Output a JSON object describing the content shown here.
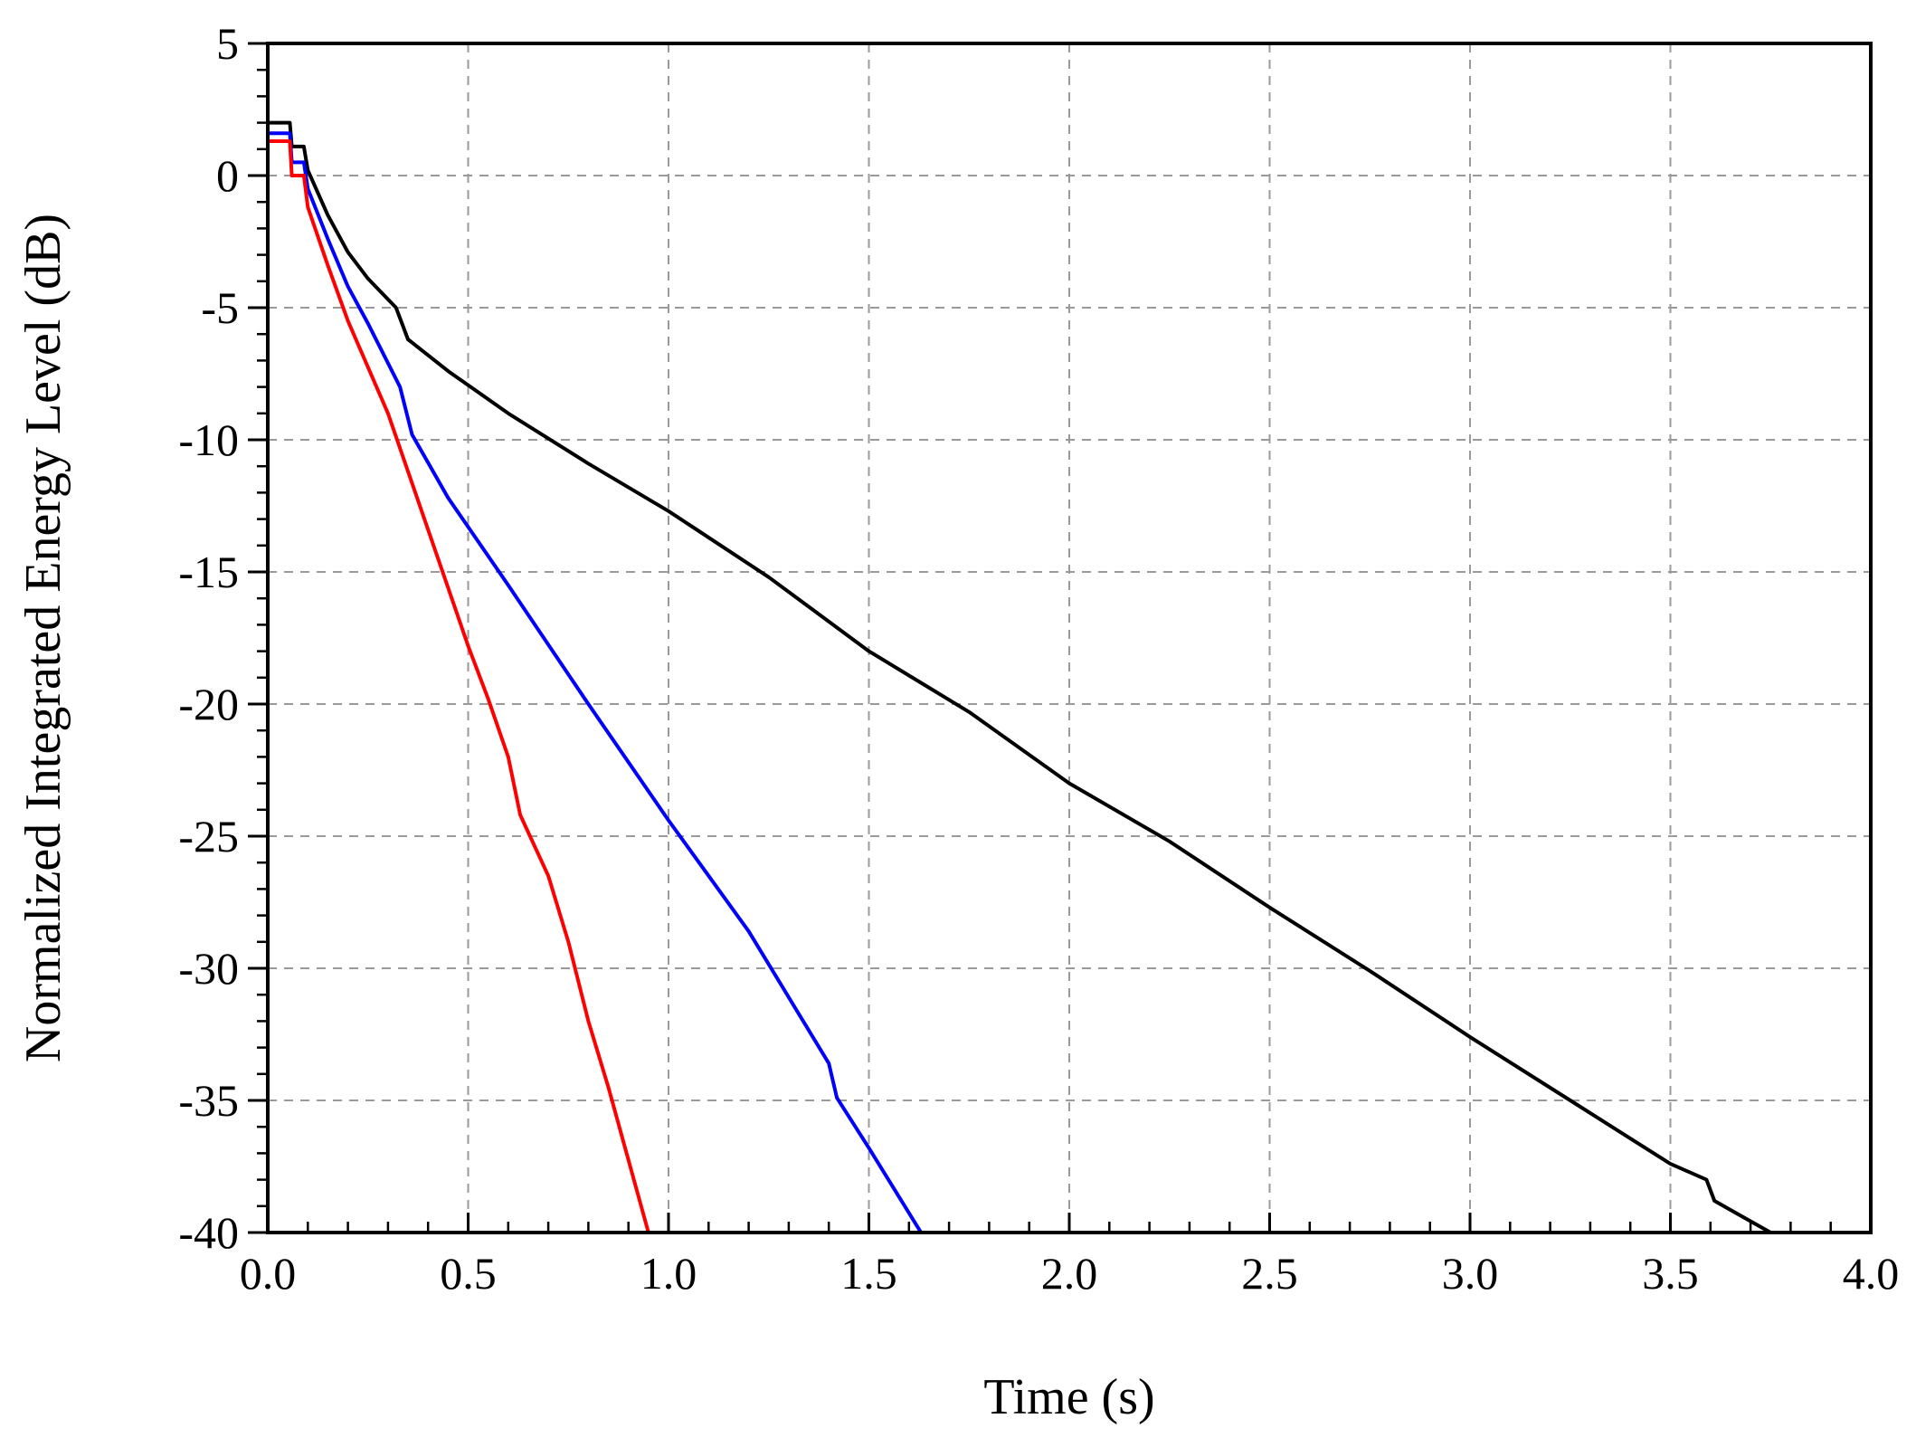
{
  "chart_data": {
    "type": "line",
    "title": "",
    "xlabel": "Time (s)",
    "ylabel": "Normalized Integrated Energy Level (dB)",
    "xlim": [
      0.0,
      4.0
    ],
    "ylim": [
      -40,
      5
    ],
    "x_ticks": [
      "0.0",
      "0.5",
      "1.0",
      "1.5",
      "2.0",
      "2.5",
      "3.0",
      "3.5",
      "4.0"
    ],
    "y_ticks": [
      "5",
      "0",
      "-5",
      "-10",
      "-15",
      "-20",
      "-25",
      "-30",
      "-35",
      "-40"
    ],
    "grid": true,
    "legend": "none",
    "series": [
      {
        "color": "#000000",
        "points": [
          [
            0.0,
            2.0
          ],
          [
            0.055,
            2.0
          ],
          [
            0.06,
            1.1
          ],
          [
            0.09,
            1.1
          ],
          [
            0.1,
            0.2
          ],
          [
            0.15,
            -1.5
          ],
          [
            0.2,
            -2.9
          ],
          [
            0.25,
            -3.9
          ],
          [
            0.32,
            -5.0
          ],
          [
            0.35,
            -6.2
          ],
          [
            0.45,
            -7.4
          ],
          [
            0.6,
            -9.0
          ],
          [
            0.8,
            -10.9
          ],
          [
            1.0,
            -12.7
          ],
          [
            1.25,
            -15.2
          ],
          [
            1.5,
            -18.0
          ],
          [
            1.75,
            -20.3
          ],
          [
            2.0,
            -23.0
          ],
          [
            2.25,
            -25.2
          ],
          [
            2.5,
            -27.7
          ],
          [
            2.75,
            -30.1
          ],
          [
            3.0,
            -32.6
          ],
          [
            3.25,
            -35.0
          ],
          [
            3.5,
            -37.4
          ],
          [
            3.59,
            -38.0
          ],
          [
            3.61,
            -38.8
          ],
          [
            3.75,
            -40.0
          ]
        ]
      },
      {
        "color": "#0000ff",
        "points": [
          [
            0.0,
            1.6
          ],
          [
            0.055,
            1.6
          ],
          [
            0.06,
            0.5
          ],
          [
            0.09,
            0.5
          ],
          [
            0.1,
            -0.5
          ],
          [
            0.15,
            -2.4
          ],
          [
            0.2,
            -4.2
          ],
          [
            0.25,
            -5.6
          ],
          [
            0.33,
            -8.0
          ],
          [
            0.36,
            -9.8
          ],
          [
            0.45,
            -12.2
          ],
          [
            0.6,
            -15.5
          ],
          [
            0.8,
            -20.0
          ],
          [
            1.0,
            -24.4
          ],
          [
            1.2,
            -28.6
          ],
          [
            1.4,
            -33.6
          ],
          [
            1.42,
            -34.9
          ],
          [
            1.5,
            -36.8
          ],
          [
            1.63,
            -40.0
          ]
        ]
      },
      {
        "color": "#ff0000",
        "points": [
          [
            0.0,
            1.3
          ],
          [
            0.055,
            1.3
          ],
          [
            0.06,
            0.0
          ],
          [
            0.09,
            0.0
          ],
          [
            0.1,
            -1.2
          ],
          [
            0.15,
            -3.4
          ],
          [
            0.2,
            -5.5
          ],
          [
            0.3,
            -9.0
          ],
          [
            0.4,
            -13.4
          ],
          [
            0.5,
            -17.8
          ],
          [
            0.55,
            -19.8
          ],
          [
            0.6,
            -22.0
          ],
          [
            0.63,
            -24.2
          ],
          [
            0.7,
            -26.5
          ],
          [
            0.75,
            -29.0
          ],
          [
            0.8,
            -32.0
          ],
          [
            0.85,
            -34.5
          ],
          [
            0.95,
            -40.0
          ]
        ]
      }
    ]
  }
}
